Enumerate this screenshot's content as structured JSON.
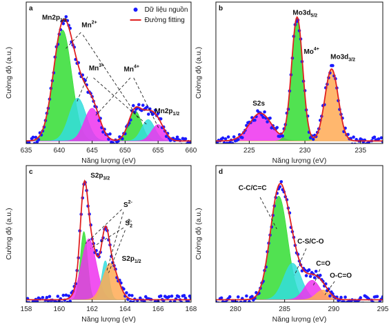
{
  "chart_data": [
    {
      "type": "line",
      "panel": "a",
      "xlabel": "Năng lượng (eV)",
      "ylabel": "Cường độ (a.u.)",
      "xlim": [
        635,
        660
      ],
      "ylim": [
        0,
        1.12
      ],
      "xticks": [
        635,
        640,
        645,
        650,
        655,
        660
      ],
      "legend": {
        "position": "top-right",
        "entries": [
          {
            "label": "Dữ liệu nguồn",
            "marker": "dot",
            "color": "#1a1aff"
          },
          {
            "label": "Đường fitting",
            "marker": "line",
            "color": "#e02020"
          }
        ]
      },
      "background": 0.02,
      "peaks": [
        {
          "center": 640.5,
          "height": 0.88,
          "width": 1.4,
          "color": "#33dd33"
        },
        {
          "center": 642.8,
          "height": 0.34,
          "width": 1.3,
          "color": "#33dddd"
        },
        {
          "center": 645.0,
          "height": 0.26,
          "width": 1.2,
          "color": "#ee33ee"
        },
        {
          "center": 651.5,
          "height": 0.24,
          "width": 1.0,
          "color": "#33dd33"
        },
        {
          "center": 653.5,
          "height": 0.17,
          "width": 1.0,
          "color": "#33dddd"
        },
        {
          "center": 655.0,
          "height": 0.13,
          "width": 1.0,
          "color": "#ee33ee"
        }
      ],
      "annotations": [
        {
          "text": "Mn2p",
          "sub": "3/2",
          "x": 637.4,
          "y": 0.98
        },
        {
          "text": "Mn",
          "sup": "2+",
          "x": 643.4,
          "y": 0.92
        },
        {
          "text": "Mn",
          "sup": "3+",
          "x": 644.5,
          "y": 0.58
        },
        {
          "text": "Mn",
          "sup": "4+",
          "x": 649.8,
          "y": 0.57
        },
        {
          "text": "Mn2p",
          "sub": "1/2",
          "x": 654.5,
          "y": 0.24
        }
      ],
      "leaders": [
        [
          [
            643.3,
            0.88
          ],
          [
            640.8,
            0.74
          ]
        ],
        [
          [
            643.6,
            0.86
          ],
          [
            652.0,
            0.2
          ]
        ],
        [
          [
            644.3,
            0.53
          ],
          [
            642.6,
            0.32
          ]
        ],
        [
          [
            645.2,
            0.52
          ],
          [
            653.3,
            0.15
          ]
        ],
        [
          [
            650.8,
            0.52
          ],
          [
            645.5,
            0.22
          ]
        ],
        [
          [
            651.3,
            0.52
          ],
          [
            655.2,
            0.11
          ]
        ]
      ]
    },
    {
      "type": "line",
      "panel": "b",
      "xlabel": "Năng lượng (eV)",
      "ylabel": "Cường độ (a.u.)",
      "xlim": [
        222,
        237
      ],
      "ylim": [
        0,
        1.12
      ],
      "xticks": [
        225,
        230,
        235
      ],
      "background": 0.02,
      "peaks": [
        {
          "center": 226.0,
          "height": 0.22,
          "width": 1.0,
          "color": "#ee33ee"
        },
        {
          "center": 229.3,
          "height": 0.98,
          "width": 0.5,
          "color": "#33dd33"
        },
        {
          "center": 232.4,
          "height": 0.57,
          "width": 0.6,
          "color": "#ffaa55"
        }
      ],
      "annotations": [
        {
          "text": "Mo3d",
          "sub": "5/2",
          "x": 228.9,
          "y": 1.02
        },
        {
          "text": "Mo",
          "sup": "4+",
          "x": 229.9,
          "y": 0.71
        },
        {
          "text": "Mo3d",
          "sub": "3/2",
          "x": 232.3,
          "y": 0.67
        },
        {
          "text": "S2s",
          "x": 225.3,
          "y": 0.3
        }
      ],
      "leaders": []
    },
    {
      "type": "line",
      "panel": "c",
      "xlabel": "Năng lượng (eV)",
      "ylabel": "Cường độ (a.u.)",
      "xlim": [
        158,
        168
      ],
      "ylim": [
        0,
        1.12
      ],
      "xticks": [
        158,
        160,
        162,
        164,
        166,
        168
      ],
      "background": 0.02,
      "peaks": [
        {
          "center": 161.5,
          "height": 0.56,
          "width": 0.22,
          "color": "#33dd33"
        },
        {
          "center": 161.8,
          "height": 0.5,
          "width": 0.45,
          "color": "#ee33ee"
        },
        {
          "center": 162.8,
          "height": 0.32,
          "width": 0.22,
          "color": "#33dddd"
        },
        {
          "center": 163.1,
          "height": 0.3,
          "width": 0.45,
          "color": "#ffaa55"
        }
      ],
      "annotations": [
        {
          "text": "S2p",
          "sub": "3/2",
          "x": 161.9,
          "y": 1.02
        },
        {
          "text": "S",
          "sup": "2-",
          "x": 163.9,
          "y": 0.78
        },
        {
          "text": "S",
          "sub": "2",
          "sup": "2-",
          "x": 164.0,
          "y": 0.63
        },
        {
          "text": "S2p",
          "sub": "1/2",
          "x": 163.8,
          "y": 0.34
        }
      ],
      "leaders": [
        [
          [
            163.8,
            0.76
          ],
          [
            161.6,
            0.48
          ]
        ],
        [
          [
            163.9,
            0.74
          ],
          [
            162.9,
            0.26
          ]
        ],
        [
          [
            163.9,
            0.61
          ],
          [
            161.9,
            0.44
          ]
        ],
        [
          [
            164.0,
            0.59
          ],
          [
            163.0,
            0.24
          ]
        ]
      ]
    },
    {
      "type": "line",
      "panel": "d",
      "xlabel": "Năng lượng (eV)",
      "ylabel": "Cường độ (a.u.)",
      "xlim": [
        278,
        295
      ],
      "ylim": [
        0,
        1.12
      ],
      "xticks": [
        280,
        285,
        290,
        295
      ],
      "background": 0.02,
      "peaks": [
        {
          "center": 284.4,
          "height": 0.85,
          "width": 0.9,
          "color": "#33dd33"
        },
        {
          "center": 285.8,
          "height": 0.3,
          "width": 0.9,
          "color": "#33dddd"
        },
        {
          "center": 287.8,
          "height": 0.16,
          "width": 0.8,
          "color": "#ee33ee"
        },
        {
          "center": 288.9,
          "height": 0.08,
          "width": 0.7,
          "color": "#ffaa55"
        }
      ],
      "annotations": [
        {
          "text": "C-C/C=C",
          "x": 280.3,
          "y": 0.92
        },
        {
          "text": "C-S/C-O",
          "x": 286.3,
          "y": 0.48
        },
        {
          "text": "C=O",
          "x": 288.2,
          "y": 0.3
        },
        {
          "text": "O-C=O",
          "x": 289.6,
          "y": 0.2
        }
      ],
      "leaders": [
        [
          [
            282.5,
            0.86
          ],
          [
            284.2,
            0.6
          ]
        ],
        [
          [
            287.2,
            0.44
          ],
          [
            286.0,
            0.22
          ]
        ],
        [
          [
            288.6,
            0.27
          ],
          [
            287.9,
            0.13
          ]
        ],
        [
          [
            290.1,
            0.17
          ],
          [
            289.1,
            0.06
          ]
        ]
      ]
    }
  ]
}
